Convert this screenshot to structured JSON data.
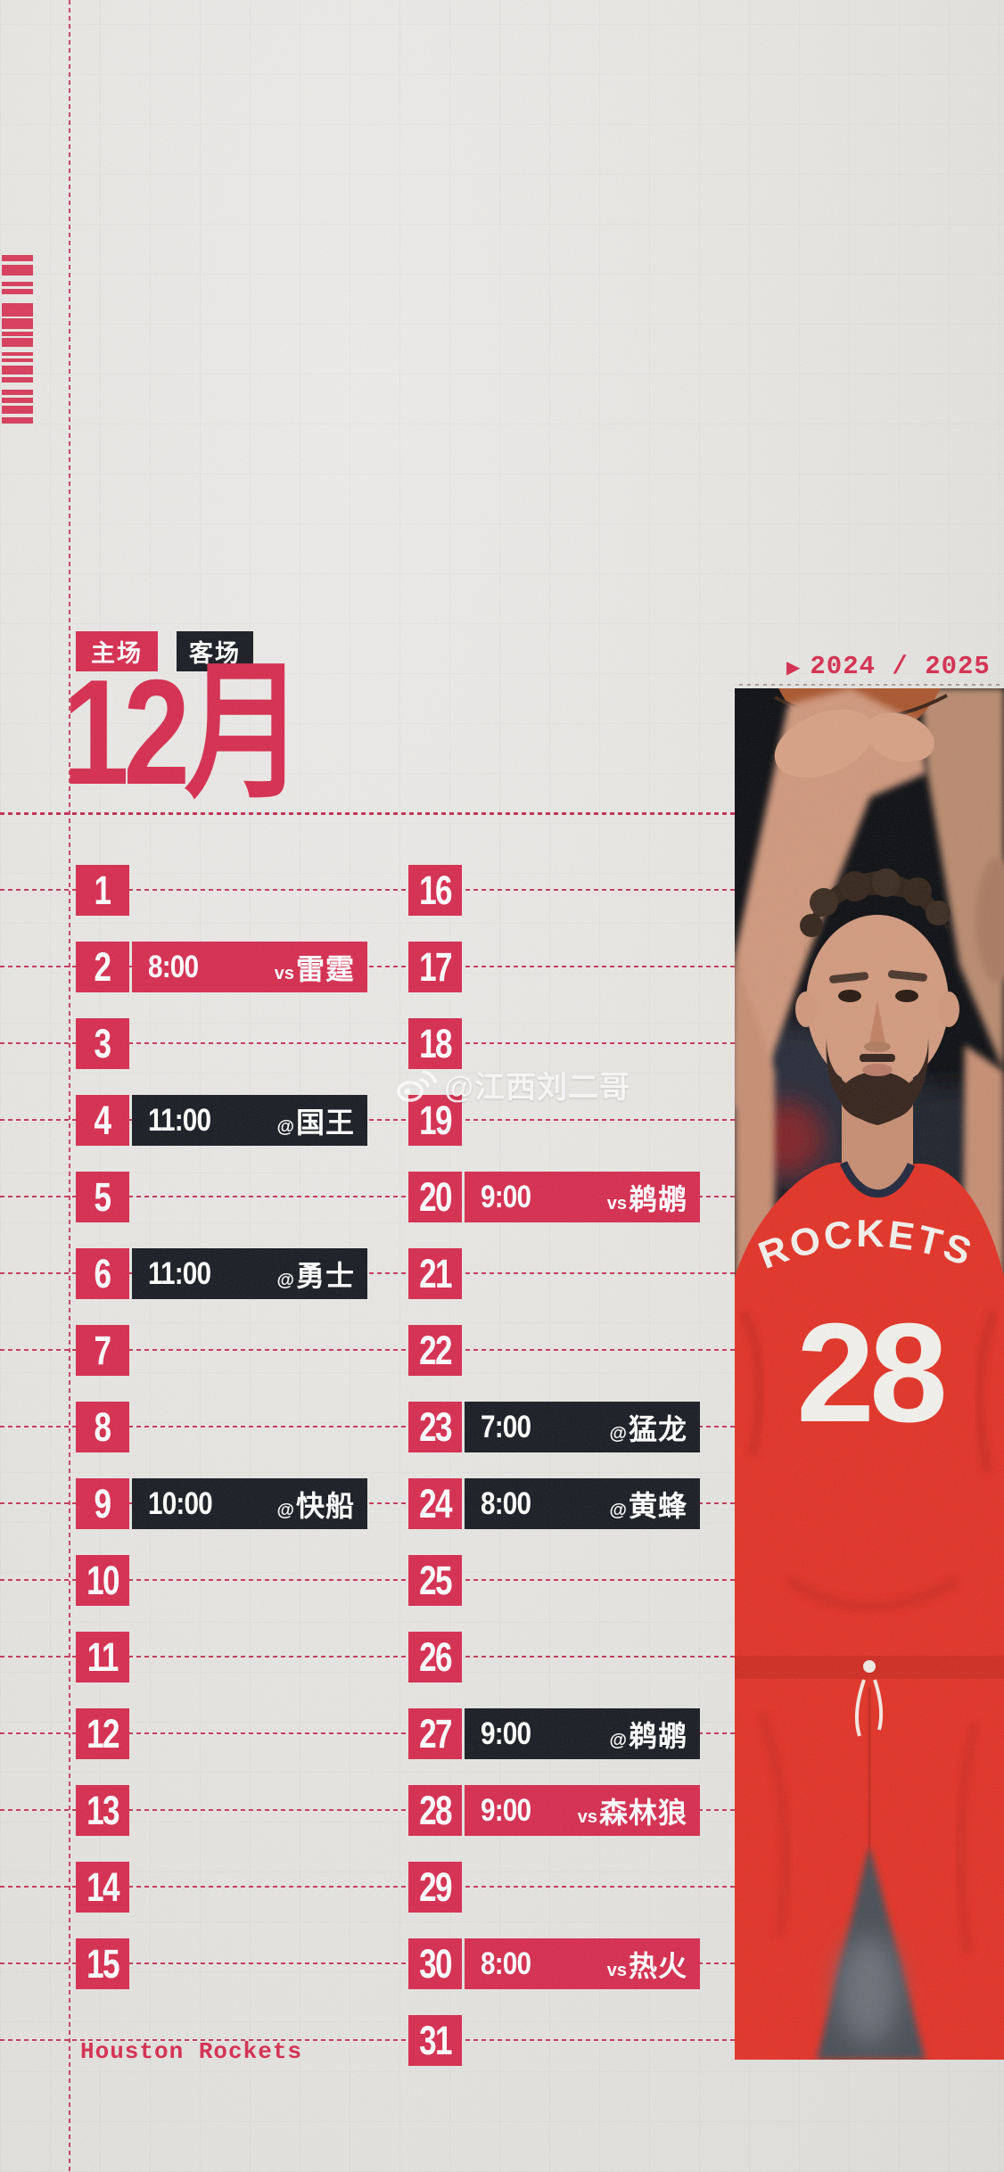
{
  "poster": {
    "season": "2024 / 2025",
    "month_title": "12月",
    "team_en": "Houston Rockets",
    "watermark": "@江西刘二哥",
    "legend": {
      "home": "主场",
      "away": "客场"
    }
  },
  "colors": {
    "accent": "#d62b4e",
    "line": "#c2244a",
    "dark": "#171a21",
    "paper": "#e7e6e4",
    "jersey_red": "#e23125"
  },
  "jersey": {
    "text": "ROCKETS",
    "number": "28"
  },
  "schedule": {
    "columns": [
      {
        "days": [
          {
            "day": "1",
            "game": null
          },
          {
            "day": "2",
            "game": {
              "time": "8:00",
              "prefix": "vs",
              "opponent": "雷霆",
              "venue": "home"
            }
          },
          {
            "day": "3",
            "game": null
          },
          {
            "day": "4",
            "game": {
              "time": "11:00",
              "prefix": "@",
              "opponent": "国王",
              "venue": "away"
            }
          },
          {
            "day": "5",
            "game": null
          },
          {
            "day": "6",
            "game": {
              "time": "11:00",
              "prefix": "@",
              "opponent": "勇士",
              "venue": "away"
            }
          },
          {
            "day": "7",
            "game": null
          },
          {
            "day": "8",
            "game": null
          },
          {
            "day": "9",
            "game": {
              "time": "10:00",
              "prefix": "@",
              "opponent": "快船",
              "venue": "away"
            }
          },
          {
            "day": "10",
            "game": null
          },
          {
            "day": "11",
            "game": null
          },
          {
            "day": "12",
            "game": null
          },
          {
            "day": "13",
            "game": null
          },
          {
            "day": "14",
            "game": null
          },
          {
            "day": "15",
            "game": null
          }
        ]
      },
      {
        "days": [
          {
            "day": "16",
            "game": null
          },
          {
            "day": "17",
            "game": null
          },
          {
            "day": "18",
            "game": null
          },
          {
            "day": "19",
            "game": null
          },
          {
            "day": "20",
            "game": {
              "time": "9:00",
              "prefix": "vs",
              "opponent": "鹈鹕",
              "venue": "home"
            }
          },
          {
            "day": "21",
            "game": null
          },
          {
            "day": "22",
            "game": null
          },
          {
            "day": "23",
            "game": {
              "time": "7:00",
              "prefix": "@",
              "opponent": "猛龙",
              "venue": "away"
            }
          },
          {
            "day": "24",
            "game": {
              "time": "8:00",
              "prefix": "@",
              "opponent": "黄蜂",
              "venue": "away"
            }
          },
          {
            "day": "25",
            "game": null
          },
          {
            "day": "26",
            "game": null
          },
          {
            "day": "27",
            "game": {
              "time": "9:00",
              "prefix": "@",
              "opponent": "鹈鹕",
              "venue": "away"
            }
          },
          {
            "day": "28",
            "game": {
              "time": "9:00",
              "prefix": "vs",
              "opponent": "森林狼",
              "venue": "home"
            }
          },
          {
            "day": "29",
            "game": null
          },
          {
            "day": "30",
            "game": {
              "time": "8:00",
              "prefix": "vs",
              "opponent": "热火",
              "venue": "home"
            }
          },
          {
            "day": "31",
            "game": null
          }
        ]
      }
    ]
  }
}
